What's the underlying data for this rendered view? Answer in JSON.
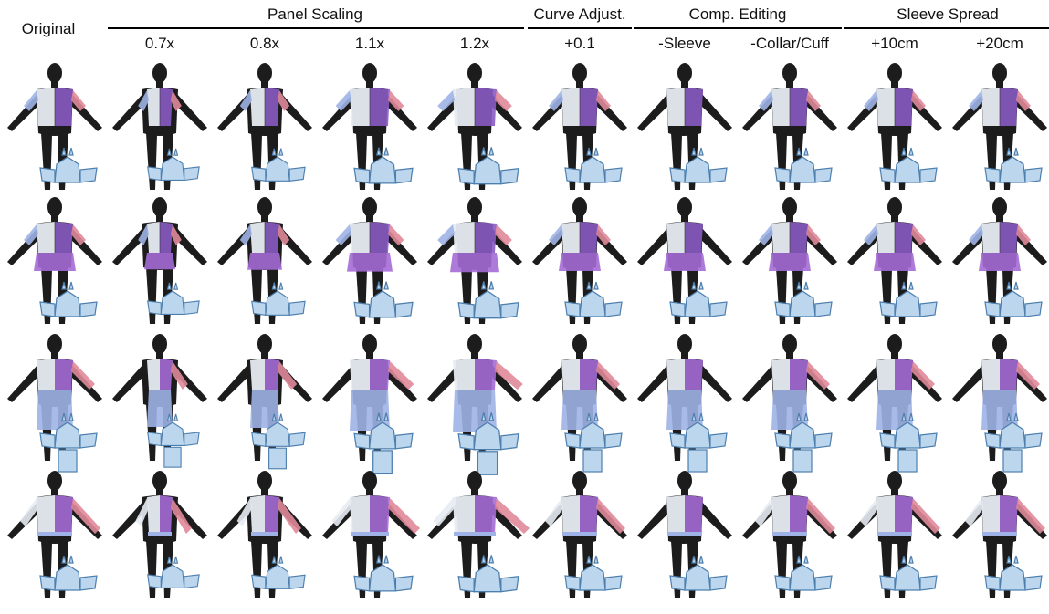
{
  "header": {
    "original_label": "Original",
    "groups": [
      {
        "label": "Panel Scaling",
        "columns": [
          "0.7x",
          "0.8x",
          "1.1x",
          "1.2x"
        ]
      },
      {
        "label": "Curve Adjust.",
        "columns": [
          "+0.1"
        ]
      },
      {
        "label": "Comp. Editing",
        "columns": [
          "-Sleeve",
          "-Collar/Cuff"
        ]
      },
      {
        "label": "Sleeve Spread",
        "columns": [
          "+10cm",
          "+20cm"
        ]
      }
    ]
  },
  "colors": {
    "body": "#1c1c1c",
    "panel_white": "#e6ecf2",
    "panel_blue": "#9fb3e6",
    "panel_purple": "#8a5bc4",
    "panel_pink": "#e08a9a",
    "panel_violet": "#a56bd6",
    "pattern_fill": "#bcd6ee",
    "pattern_stroke": "#4d7fae"
  },
  "rows": [
    {
      "garment": "shirt-short-sleeve"
    },
    {
      "garment": "shirt-skirt"
    },
    {
      "garment": "top-long-skirt"
    },
    {
      "garment": "long-sleeve-top"
    }
  ]
}
